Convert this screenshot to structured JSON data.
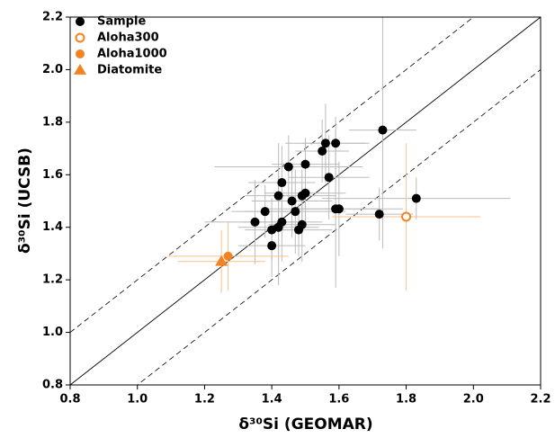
{
  "chart_data": {
    "type": "scatter",
    "x_label": "δ³⁰Si (GEOMAR)",
    "y_label": "δ³⁰Si (UCSB)",
    "xlim": [
      0.8,
      2.2
    ],
    "ylim": [
      0.8,
      2.2
    ],
    "xticks": [
      0.8,
      {
        "value": 1,
        "label": "1.0"
      },
      1.2,
      1.4,
      1.6,
      1.8,
      {
        "value": 2,
        "label": "2.0"
      },
      2.2
    ],
    "yticks": [
      0.8,
      {
        "value": 1,
        "label": "1.0"
      },
      1.2,
      1.4,
      1.6,
      1.8,
      {
        "value": 2,
        "label": "2.0"
      },
      2.2
    ],
    "reference_lines": [
      {
        "offset": 0,
        "style": "solid"
      },
      {
        "offset": 0.2,
        "style": "dashed"
      },
      {
        "offset": -0.2,
        "style": "dashed"
      }
    ],
    "legend": "upper left",
    "series": [
      {
        "name": "Sample",
        "color": "#000000",
        "error_color": "#bbbbbb",
        "marker": "filled-circle",
        "x": [
          1.73,
          1.56,
          1.59,
          1.55,
          1.45,
          1.5,
          1.57,
          1.43,
          1.5,
          1.49,
          1.42,
          1.46,
          1.47,
          1.38,
          1.59,
          1.6,
          1.72,
          1.83,
          1.35,
          1.43,
          1.42,
          1.49,
          1.48,
          1.4,
          1.4
        ],
        "y": [
          1.77,
          1.72,
          1.72,
          1.69,
          1.63,
          1.64,
          1.59,
          1.57,
          1.53,
          1.52,
          1.52,
          1.5,
          1.46,
          1.46,
          1.47,
          1.47,
          1.45,
          1.51,
          1.42,
          1.42,
          1.4,
          1.41,
          1.39,
          1.39,
          1.33
        ],
        "xerr": [
          0.1,
          0.12,
          0.1,
          0.08,
          0.22,
          0.1,
          0.12,
          0.1,
          0.12,
          0.1,
          0.1,
          0.12,
          0.15,
          0.1,
          0.2,
          0.12,
          0.1,
          0.28,
          0.15,
          0.12,
          0.12,
          0.1,
          0.1,
          0.08,
          0.1
        ],
        "yerr": [
          0.45,
          0.15,
          0.1,
          0.12,
          0.12,
          0.1,
          0.16,
          0.14,
          0.12,
          0.1,
          0.2,
          0.14,
          0.16,
          0.1,
          0.3,
          0.18,
          0.1,
          0.08,
          0.16,
          0.15,
          0.22,
          0.14,
          0.1,
          0.12,
          0.12
        ]
      },
      {
        "name": "Aloha300",
        "color": "#f58220",
        "error_color": "#f9c08c",
        "marker": "open-circle",
        "x": [
          1.8
        ],
        "y": [
          1.44
        ],
        "xerr": [
          0.22
        ],
        "yerr": [
          0.28
        ]
      },
      {
        "name": "Aloha1000",
        "color": "#f58220",
        "error_color": "#f9c08c",
        "marker": "filled-circle",
        "x": [
          1.27
        ],
        "y": [
          1.29
        ],
        "xerr": [
          0.18
        ],
        "yerr": [
          0.13
        ]
      },
      {
        "name": "Diatomite",
        "color": "#f58220",
        "error_color": "#f9c08c",
        "marker": "triangle",
        "x": [
          1.25
        ],
        "y": [
          1.27
        ],
        "xerr": [
          0.13
        ],
        "yerr": [
          0.12
        ]
      }
    ]
  }
}
